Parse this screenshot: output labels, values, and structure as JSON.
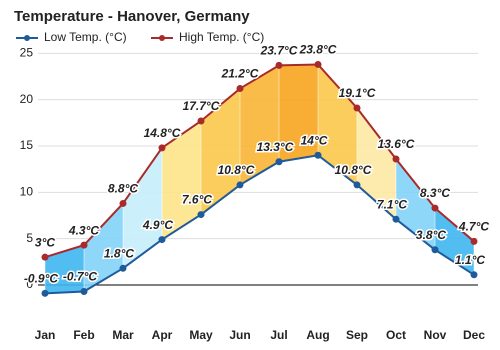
{
  "chart_data": {
    "type": "range-line",
    "title": "Temperature - Hanover, Germany",
    "categories": [
      "Jan",
      "Feb",
      "Mar",
      "Apr",
      "May",
      "Jun",
      "Jul",
      "Aug",
      "Sep",
      "Oct",
      "Nov",
      "Dec"
    ],
    "series": [
      {
        "name": "Low Temp. (°C)",
        "color": "#1f5a9a",
        "values": [
          -0.9,
          -0.7,
          1.8,
          4.9,
          7.6,
          10.8,
          13.3,
          14,
          10.8,
          7.1,
          3.8,
          1.1
        ],
        "value_labels": [
          "-0.9°C",
          "-0.7°C",
          "1.8°C",
          "4.9°C",
          "7.6°C",
          "10.8°C",
          "13.3°C",
          "14°C",
          "10.8°C",
          "7.1°C",
          "3.8°C",
          "1.1°C"
        ]
      },
      {
        "name": "High Temp. (°C)",
        "color": "#a82a2a",
        "values": [
          3,
          4.3,
          8.8,
          14.8,
          17.7,
          21.2,
          23.7,
          23.8,
          19.1,
          13.6,
          8.3,
          4.7
        ],
        "value_labels": [
          "3°C",
          "4.3°C",
          "8.8°C",
          "14.8°C",
          "17.7°C",
          "21.2°C",
          "23.7°C",
          "23.8°C",
          "19.1°C",
          "13.6°C",
          "8.3°C",
          "4.7°C"
        ]
      }
    ],
    "fill_colors": [
      "#3fb6ee",
      "#82d3f7",
      "#c6eefb",
      "#fde48a",
      "#fbc84a",
      "#f9b534",
      "#f7a41e",
      "#fbc84a",
      "#fde9a4",
      "#82d3f7",
      "#3fb6ee"
    ],
    "ylim": [
      -2.7,
      25.9
    ],
    "yticks": [
      0,
      5,
      10,
      15,
      20,
      25
    ],
    "grid": true
  }
}
